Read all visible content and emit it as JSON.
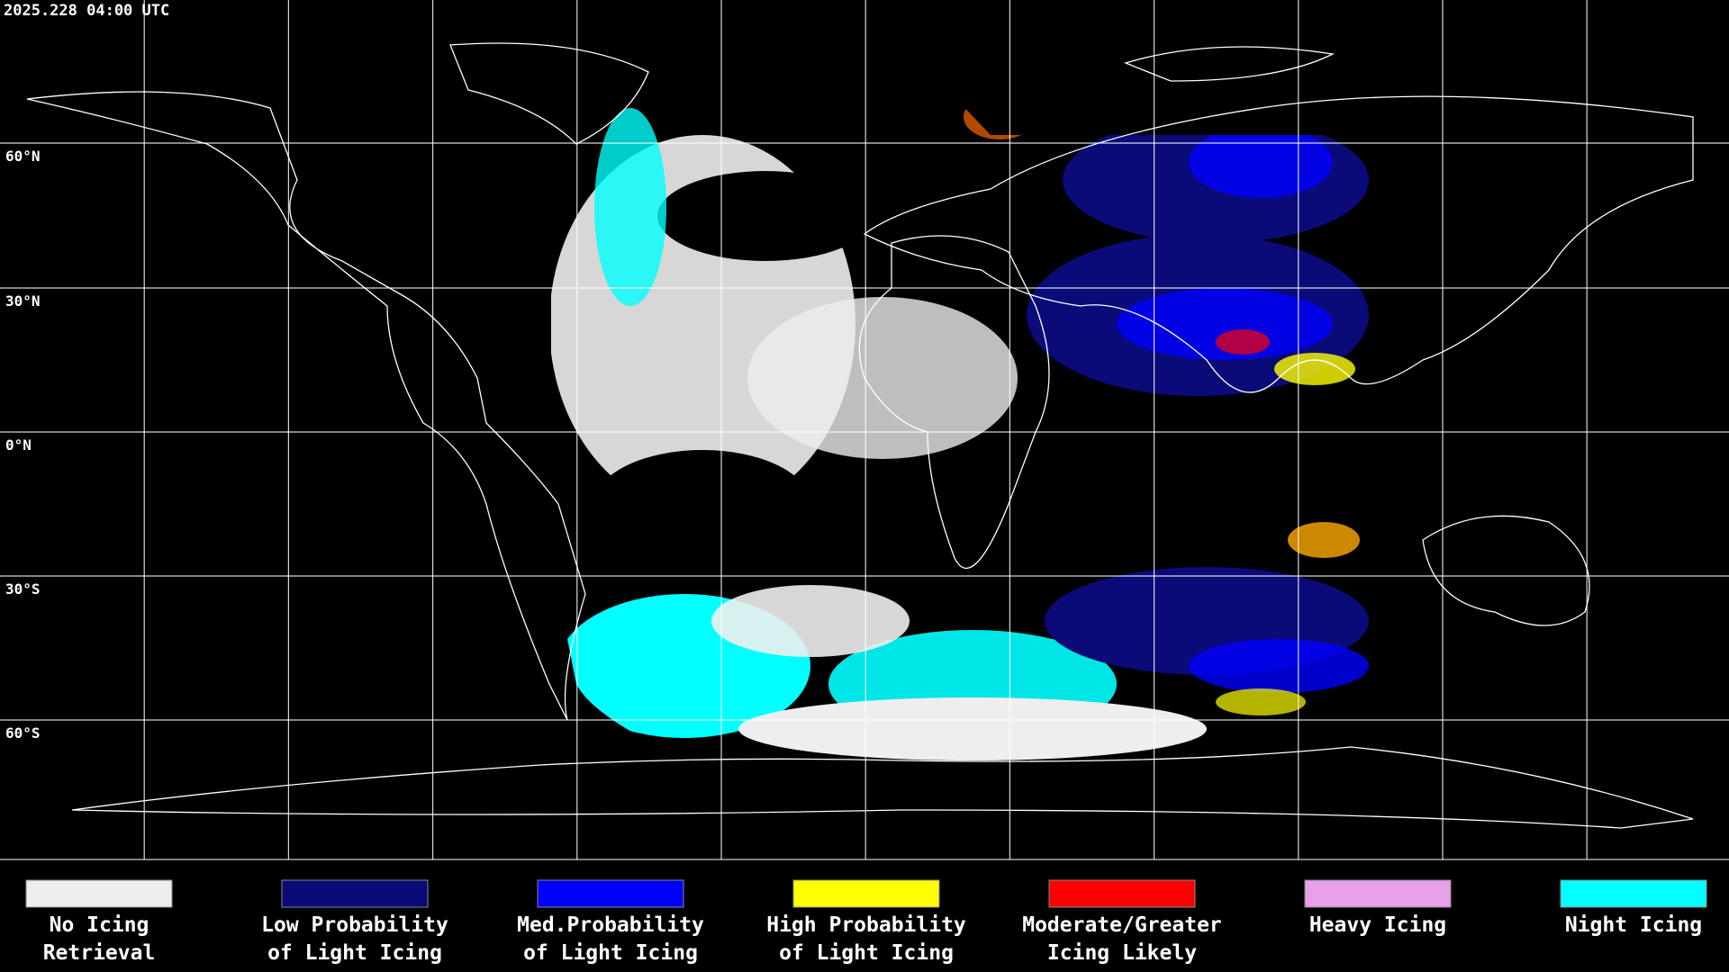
{
  "timestamp": "2025.228 04:00 UTC",
  "latitude_labels": [
    "60°N",
    "30°N",
    "0°N",
    "30°S",
    "60°S"
  ],
  "legend": [
    {
      "label_lines": [
        "No Icing",
        "Retrieval"
      ],
      "color": "#eeeeee"
    },
    {
      "label_lines": [
        "Low Probability",
        "of Light Icing"
      ],
      "color": "#0a0a78"
    },
    {
      "label_lines": [
        "Med.Probability",
        "of Light Icing"
      ],
      "color": "#0000ff"
    },
    {
      "label_lines": [
        "High Probability",
        "of Light Icing"
      ],
      "color": "#ffff00"
    },
    {
      "label_lines": [
        "Moderate/Greater",
        "Icing Likely"
      ],
      "color": "#ff0000"
    },
    {
      "label_lines": [
        "Heavy Icing"
      ],
      "color": "#e8a0e8"
    },
    {
      "label_lines": [
        "Night Icing"
      ],
      "color": "#00ffff"
    }
  ]
}
